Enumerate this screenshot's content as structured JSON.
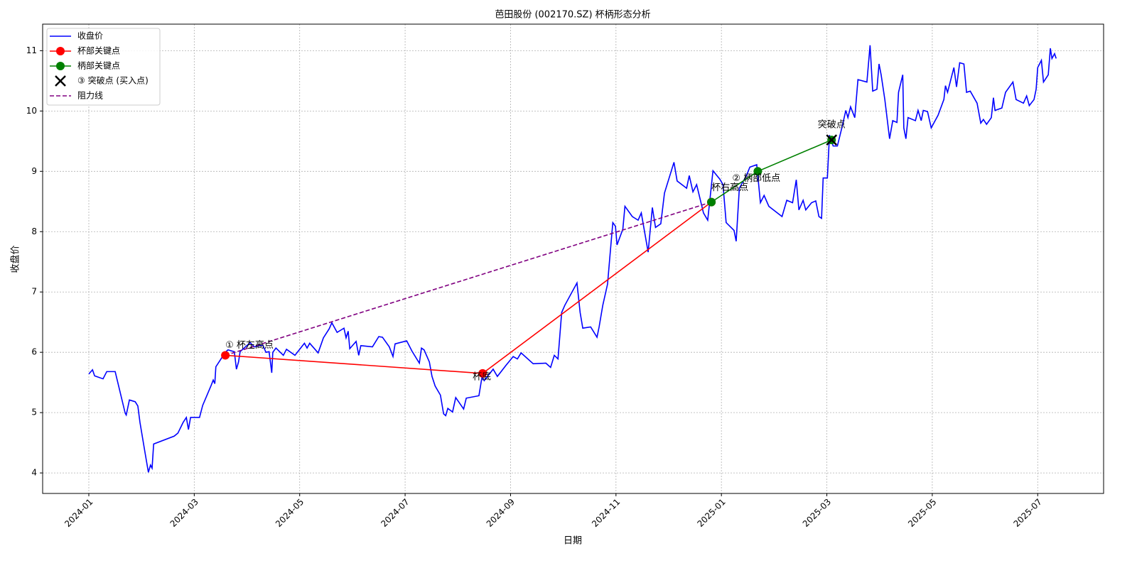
{
  "chart_data": {
    "type": "line",
    "title": "芭田股份 (002170.SZ) 杯柄形态分析",
    "xlabel": "日期",
    "ylabel": "收盘价",
    "xlim": [
      -0.876,
      19.25
    ],
    "ylim": [
      3.66,
      11.44
    ],
    "xticks": [
      {
        "value": 0,
        "label": "2024-01"
      },
      {
        "value": 2,
        "label": "2024-03"
      },
      {
        "value": 4,
        "label": "2024-05"
      },
      {
        "value": 6,
        "label": "2024-07"
      },
      {
        "value": 8,
        "label": "2024-09"
      },
      {
        "value": 10,
        "label": "2024-11"
      },
      {
        "value": 12,
        "label": "2025-01"
      },
      {
        "value": 14,
        "label": "2025-03"
      },
      {
        "value": 16,
        "label": "2025-05"
      },
      {
        "value": 18,
        "label": "2025-07"
      }
    ],
    "yticks": [
      4,
      5,
      6,
      7,
      8,
      9,
      10,
      11
    ],
    "grid": true,
    "legend": "upper left",
    "series": [
      {
        "name": "收盘价",
        "color": "#0000ff",
        "linestyle": "solid",
        "marker": null,
        "x": [
          0,
          0.07,
          0.11,
          0.27,
          0.34,
          0.5,
          0.58,
          0.69,
          0.71,
          0.77,
          0.88,
          0.93,
          0.97,
          1.05,
          1.13,
          1.17,
          1.2,
          1.23,
          1.62,
          1.69,
          1.79,
          1.85,
          1.89,
          1.93,
          2.1,
          2.16,
          2.32,
          2.36,
          2.39,
          2.41,
          2.59,
          2.64,
          2.76,
          2.8,
          2.84,
          2.87,
          3.06,
          3.14,
          3.3,
          3.36,
          3.42,
          3.47,
          3.49,
          3.55,
          3.69,
          3.75,
          3.91,
          4.09,
          4.14,
          4.19,
          4.35,
          4.45,
          4.56,
          4.61,
          4.71,
          4.84,
          4.88,
          4.92,
          4.95,
          5.07,
          5.12,
          5.16,
          5.38,
          5.5,
          5.57,
          5.7,
          5.77,
          5.81,
          6.03,
          6.13,
          6.27,
          6.31,
          6.36,
          6.46,
          6.51,
          6.57,
          6.67,
          6.73,
          6.77,
          6.81,
          6.9,
          6.96,
          7.11,
          7.16,
          7.4,
          7.46,
          7.5,
          7.67,
          7.75,
          7.91,
          8.05,
          8.13,
          8.2,
          8.43,
          8.67,
          8.76,
          8.83,
          8.9,
          8.97,
          9.03,
          9.26,
          9.32,
          9.37,
          9.52,
          9.64,
          9.68,
          9.75,
          9.84,
          9.88,
          9.94,
          9.99,
          10.02,
          10.13,
          10.17,
          10.31,
          10.42,
          10.48,
          10.61,
          10.69,
          10.75,
          10.85,
          10.92,
          11.1,
          11.16,
          11.34,
          11.39,
          11.46,
          11.53,
          11.66,
          11.74,
          11.84,
          11.97,
          12.03,
          12.09,
          12.24,
          12.28,
          12.34,
          12.47,
          12.54,
          12.67,
          12.74,
          12.81,
          12.9,
          13.15,
          13.24,
          13.35,
          13.42,
          13.47,
          13.55,
          13.6,
          13.71,
          13.79,
          13.85,
          13.9,
          13.93,
          14.01,
          14.05,
          14.12,
          14.2,
          14.29,
          14.36,
          14.4,
          14.45,
          14.53,
          14.59,
          14.76,
          14.82,
          14.87,
          14.95,
          14.99,
          15.03,
          15.1,
          15.19,
          15.25,
          15.33,
          15.36,
          15.44,
          15.46,
          15.5,
          15.54,
          15.68,
          15.73,
          15.79,
          15.83,
          15.91,
          15.98,
          16.11,
          16.22,
          16.25,
          16.29,
          16.41,
          16.46,
          16.52,
          16.6,
          16.65,
          16.72,
          16.85,
          16.92,
          16.97,
          17.03,
          17.12,
          17.16,
          17.19,
          17.32,
          17.39,
          17.53,
          17.59,
          17.73,
          17.79,
          17.84,
          17.93,
          17.97,
          18,
          18.07,
          18.11,
          18.2,
          18.24,
          18.27,
          18.32,
          18.35
        ],
        "values": [
          5.64,
          5.71,
          5.61,
          5.56,
          5.68,
          5.68,
          5.39,
          4.99,
          4.96,
          5.21,
          5.18,
          5.11,
          4.84,
          4.42,
          4.01,
          4.13,
          4.08,
          4.48,
          4.61,
          4.66,
          4.84,
          4.92,
          4.72,
          4.92,
          4.92,
          5.12,
          5.45,
          5.54,
          5.48,
          5.76,
          6,
          6.04,
          6.01,
          5.72,
          5.84,
          6.01,
          6.16,
          6.09,
          6.12,
          6,
          6.01,
          5.66,
          6,
          6.07,
          5.95,
          6.05,
          5.95,
          6.15,
          6.07,
          6.15,
          5.99,
          6.24,
          6.39,
          6.49,
          6.33,
          6.4,
          6.24,
          6.35,
          6.06,
          6.18,
          5.95,
          6.11,
          6.09,
          6.26,
          6.25,
          6.09,
          5.93,
          6.14,
          6.19,
          6.02,
          5.82,
          6.07,
          6.04,
          5.84,
          5.6,
          5.44,
          5.29,
          4.98,
          4.95,
          5.07,
          5.01,
          5.25,
          5.06,
          5.24,
          5.28,
          5.6,
          5.53,
          5.72,
          5.6,
          5.78,
          5.93,
          5.89,
          5.99,
          5.81,
          5.82,
          5.75,
          5.95,
          5.89,
          6.66,
          6.78,
          7.15,
          6.66,
          6.4,
          6.42,
          6.25,
          6.42,
          6.78,
          7.13,
          7.54,
          8.15,
          8.09,
          7.78,
          8.04,
          8.42,
          8.25,
          8.19,
          8.31,
          7.66,
          8.4,
          8.07,
          8.13,
          8.64,
          9.15,
          8.84,
          8.72,
          8.93,
          8.66,
          8.78,
          8.31,
          8.19,
          9.01,
          8.87,
          8.78,
          8.15,
          8.02,
          7.84,
          8.72,
          8.92,
          9.07,
          9.11,
          8.48,
          8.6,
          8.42,
          8.25,
          8.52,
          8.48,
          8.86,
          8.36,
          8.52,
          8.36,
          8.48,
          8.51,
          8.25,
          8.22,
          8.89,
          8.89,
          9.6,
          9.42,
          9.42,
          9.74,
          10.01,
          9.89,
          10.07,
          9.89,
          10.52,
          10.48,
          11.09,
          10.33,
          10.36,
          10.78,
          10.6,
          10.19,
          9.54,
          9.84,
          9.81,
          10.31,
          10.6,
          9.72,
          9.54,
          9.89,
          9.84,
          10.01,
          9.84,
          10.01,
          9.99,
          9.72,
          9.93,
          10.19,
          10.42,
          10.31,
          10.72,
          10.4,
          10.8,
          10.78,
          10.31,
          10.33,
          10.13,
          9.8,
          9.86,
          9.78,
          9.89,
          10.22,
          10.01,
          10.05,
          10.31,
          10.48,
          10.19,
          10.13,
          10.25,
          10.09,
          10.19,
          10.36,
          10.72,
          10.84,
          10.48,
          10.6,
          11.04,
          10.87,
          10.95,
          10.87
        ]
      },
      {
        "name": "杯部关键点",
        "color": "#ff0000",
        "linestyle": "solid",
        "marker": "o",
        "x": [
          2.59,
          7.47,
          11.81
        ],
        "values": [
          5.95,
          5.65,
          8.49
        ]
      },
      {
        "name": "柄部关键点",
        "color": "#008000",
        "linestyle": "solid",
        "marker": "o",
        "x": [
          11.81,
          12.69,
          14.09
        ],
        "values": [
          8.49,
          9.0,
          9.52
        ]
      },
      {
        "name": "③ 突破点 (买入点)",
        "color": "#000000",
        "linestyle": "none",
        "marker": "x",
        "x": [
          14.09
        ],
        "values": [
          9.52
        ]
      },
      {
        "name": "阻力线",
        "color": "#800080",
        "linestyle": "dashed",
        "marker": null,
        "x": [
          2.59,
          11.81
        ],
        "values": [
          5.95,
          8.49
        ]
      }
    ],
    "annotations": [
      {
        "text": "① 杯左高点",
        "color": "#ff0000"
      },
      {
        "text": "杯底",
        "color": "#ff0000"
      },
      {
        "text": "杯右高点",
        "color": "#ff0000"
      },
      {
        "text": "② 柄部低点",
        "color": "#008000"
      },
      {
        "text": "突破点",
        "color": "#000000"
      }
    ]
  }
}
